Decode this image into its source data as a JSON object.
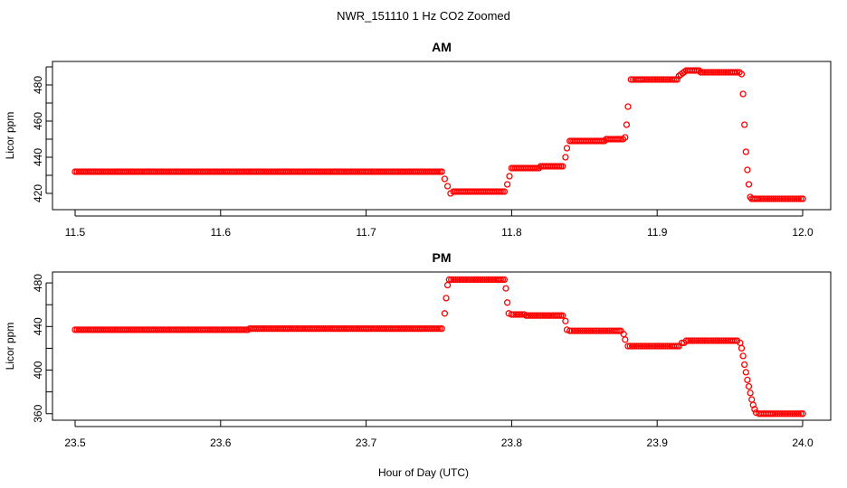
{
  "figure": {
    "title": "NWR_151110  1 Hz CO2 Zoomed",
    "xlabel": "Hour of Day (UTC)",
    "point_color": "#ff0000"
  },
  "chart_data": [
    {
      "type": "scatter",
      "title": "AM",
      "xlabel": "",
      "ylabel": "Licor ppm",
      "xlim": [
        11.5,
        12.0
      ],
      "ylim": [
        411,
        493
      ],
      "xticks": [
        "11.5",
        "11.6",
        "11.7",
        "11.8",
        "11.9",
        "12.0"
      ],
      "yticks": [
        "420",
        "440",
        "460",
        "480"
      ],
      "series": [
        {
          "name": "CO2",
          "x": [
            11.5,
            11.52,
            11.54,
            11.56,
            11.58,
            11.6,
            11.62,
            11.64,
            11.66,
            11.68,
            11.7,
            11.72,
            11.74,
            11.752,
            11.754,
            11.756,
            11.758,
            11.76,
            11.765,
            11.77,
            11.775,
            11.78,
            11.785,
            11.79,
            11.795,
            11.797,
            11.8,
            11.805,
            11.81,
            11.815,
            11.82,
            11.825,
            11.83,
            11.835,
            11.837,
            11.838,
            11.84,
            11.845,
            11.85,
            11.855,
            11.86,
            11.865,
            11.87,
            11.875,
            11.878,
            11.879,
            11.88,
            11.882,
            11.885,
            11.89,
            11.9,
            11.91,
            11.915,
            11.92,
            11.925,
            11.93,
            11.94,
            11.95,
            11.955,
            11.958,
            11.959,
            11.96,
            11.961,
            11.962,
            11.963,
            11.964,
            11.965,
            11.97,
            11.98,
            11.99,
            12.0
          ],
          "y": [
            432,
            432,
            432,
            432,
            432,
            432,
            432,
            432,
            432,
            432,
            432,
            432,
            432,
            432,
            428,
            424,
            420,
            421,
            421,
            421,
            421,
            421,
            421,
            421,
            421,
            425,
            434,
            434,
            434,
            434,
            435,
            435,
            435,
            435,
            440,
            445,
            449,
            449,
            449,
            449,
            449,
            450,
            450,
            450,
            451,
            458,
            468,
            483,
            483,
            483,
            483,
            483,
            485,
            488,
            488,
            487,
            487,
            487,
            487,
            486,
            475,
            458,
            443,
            433,
            425,
            418,
            417,
            417,
            417,
            417,
            417
          ]
        }
      ]
    },
    {
      "type": "scatter",
      "title": "PM",
      "xlabel": "",
      "ylabel": "Licor ppm",
      "xlim": [
        23.5,
        24.0
      ],
      "ylim": [
        354,
        490
      ],
      "xticks": [
        "23.5",
        "23.6",
        "23.7",
        "23.8",
        "23.9",
        "24.0"
      ],
      "yticks": [
        "360",
        "400",
        "440",
        "480"
      ],
      "series": [
        {
          "name": "CO2",
          "x": [
            23.5,
            23.52,
            23.54,
            23.56,
            23.58,
            23.6,
            23.62,
            23.64,
            23.66,
            23.68,
            23.7,
            23.72,
            23.74,
            23.752,
            23.754,
            23.755,
            23.756,
            23.757,
            23.76,
            23.77,
            23.78,
            23.79,
            23.795,
            23.796,
            23.797,
            23.798,
            23.8,
            23.81,
            23.82,
            23.83,
            23.835,
            23.837,
            23.838,
            23.84,
            23.85,
            23.86,
            23.87,
            23.875,
            23.877,
            23.878,
            23.88,
            23.89,
            23.9,
            23.91,
            23.915,
            23.917,
            23.92,
            23.93,
            23.94,
            23.95,
            23.955,
            23.957,
            23.958,
            23.959,
            23.96,
            23.961,
            23.962,
            23.963,
            23.964,
            23.965,
            23.966,
            23.967,
            23.968,
            23.97,
            23.975,
            23.98,
            23.99,
            24.0
          ],
          "y": [
            437,
            437,
            437,
            437,
            437,
            437,
            438,
            438,
            438,
            438,
            438,
            438,
            438,
            438,
            452,
            466,
            478,
            483,
            483,
            483,
            483,
            483,
            483,
            475,
            462,
            452,
            451,
            450,
            450,
            450,
            450,
            445,
            437,
            436,
            436,
            436,
            436,
            436,
            433,
            428,
            422,
            422,
            422,
            422,
            422,
            425,
            427,
            427,
            427,
            427,
            427,
            425,
            420,
            413,
            405,
            398,
            391,
            385,
            379,
            373,
            368,
            364,
            361,
            360,
            360,
            360,
            360,
            360
          ]
        }
      ]
    }
  ]
}
